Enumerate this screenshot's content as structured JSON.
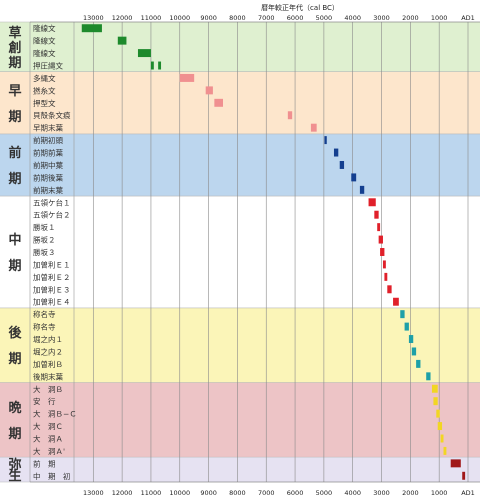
{
  "chart_data": {
    "type": "bar",
    "title": "暦年較正年代（cal BC）",
    "x_axis_ticks": [
      "13000",
      "12000",
      "11000",
      "10000",
      "9000",
      "8000",
      "7000",
      "6000",
      "5000",
      "4000",
      "3000",
      "2000",
      "1000",
      "AD1"
    ],
    "x_axis_values": [
      13000,
      12000,
      11000,
      10000,
      9000,
      8000,
      7000,
      6000,
      5000,
      4000,
      3000,
      2000,
      1000,
      0
    ],
    "xlim": [
      13600,
      0
    ],
    "grid": true,
    "periods": [
      {
        "label": "草創期",
        "color": "#dff0d0",
        "bar_color": "#1e8a2c",
        "phases": [
          {
            "name": "隆線文",
            "ranges": [
              [
                13400,
                12700
              ]
            ]
          },
          {
            "name": "隆線文",
            "ranges": [
              [
                12150,
                11850
              ]
            ]
          },
          {
            "name": "隆線文",
            "ranges": [
              [
                11450,
                11000
              ]
            ]
          },
          {
            "name": "押圧縄文",
            "ranges": [
              [
                11000,
                10900
              ],
              [
                10750,
                10650
              ]
            ]
          }
        ]
      },
      {
        "label": "早期",
        "color": "#fde6cc",
        "bar_color": "#f09090",
        "phases": [
          {
            "name": "多縄文",
            "ranges": [
              [
                10000,
                9500
              ]
            ]
          },
          {
            "name": "撚糸文",
            "ranges": [
              [
                9100,
                8850
              ]
            ]
          },
          {
            "name": "押型文",
            "ranges": [
              [
                8800,
                8500
              ]
            ]
          },
          {
            "name": "貝殻条文痕",
            "ranges": [
              [
                6250,
                6100
              ]
            ]
          },
          {
            "name": "早期末葉",
            "ranges": [
              [
                5450,
                5250
              ]
            ]
          }
        ]
      },
      {
        "label": "前期",
        "color": "#bcd6ee",
        "bar_color": "#143f8f",
        "phases": [
          {
            "name": "前期初頭",
            "ranges": [
              [
                4980,
                4900
              ]
            ]
          },
          {
            "name": "前期前葉",
            "ranges": [
              [
                4650,
                4500
              ]
            ]
          },
          {
            "name": "前期中葉",
            "ranges": [
              [
                4450,
                4300
              ]
            ]
          },
          {
            "name": "前期後葉",
            "ranges": [
              [
                4050,
                3880
              ]
            ]
          },
          {
            "name": "前期末葉",
            "ranges": [
              [
                3750,
                3600
              ]
            ]
          }
        ]
      },
      {
        "label": "中期",
        "color": "#ffffff",
        "bar_color": "#e0202a",
        "phases": [
          {
            "name": "五領ケ台１",
            "ranges": [
              [
                3450,
                3200
              ]
            ]
          },
          {
            "name": "五領ケ台２",
            "ranges": [
              [
                3250,
                3100
              ]
            ]
          },
          {
            "name": "勝坂１",
            "ranges": [
              [
                3150,
                3050
              ]
            ]
          },
          {
            "name": "勝坂２",
            "ranges": [
              [
                3100,
                2950
              ]
            ]
          },
          {
            "name": "勝坂３",
            "ranges": [
              [
                3050,
                2900
              ]
            ]
          },
          {
            "name": "加曽利Ｅ１",
            "ranges": [
              [
                2950,
                2850
              ]
            ]
          },
          {
            "name": "加曽利Ｅ２",
            "ranges": [
              [
                2900,
                2800
              ]
            ]
          },
          {
            "name": "加曽利Ｅ３",
            "ranges": [
              [
                2800,
                2650
              ]
            ]
          },
          {
            "name": "加曽利Ｅ４",
            "ranges": [
              [
                2600,
                2400
              ]
            ]
          }
        ]
      },
      {
        "label": "後期",
        "color": "#fbf5b8",
        "bar_color": "#1ea0a8",
        "phases": [
          {
            "name": "称名寺",
            "ranges": [
              [
                2350,
                2200
              ]
            ]
          },
          {
            "name": "称名寺",
            "ranges": [
              [
                2200,
                2050
              ]
            ]
          },
          {
            "name": "堀之内１",
            "ranges": [
              [
                2050,
                1900
              ]
            ]
          },
          {
            "name": "堀之内２",
            "ranges": [
              [
                1950,
                1800
              ]
            ]
          },
          {
            "name": "加曽利Ｂ",
            "ranges": [
              [
                1800,
                1650
              ]
            ]
          },
          {
            "name": "後期末葉",
            "ranges": [
              [
                1450,
                1300
              ]
            ]
          }
        ]
      },
      {
        "label": "晩期",
        "color": "#edc4c6",
        "bar_color": "#f2d622",
        "phases": [
          {
            "name": "大　洞Ｂ",
            "ranges": [
              [
                1250,
                1050
              ]
            ]
          },
          {
            "name": "安　行",
            "ranges": [
              [
                1200,
                1050
              ]
            ]
          },
          {
            "name": "大　洞Ｂ−Ｃ",
            "ranges": [
              [
                1100,
                980
              ]
            ]
          },
          {
            "name": "大　洞Ｃ",
            "ranges": [
              [
                1050,
                900
              ]
            ]
          },
          {
            "name": "大　洞Ａ",
            "ranges": [
              [
                950,
                850
              ]
            ]
          },
          {
            "name": "大　洞Ａ'",
            "ranges": [
              [
                850,
                750
              ]
            ]
          }
        ]
      },
      {
        "label": "弥生",
        "color": "#e6e2f2",
        "bar_color": "#a01818",
        "phases": [
          {
            "name": "前　期",
            "ranges": [
              [
                600,
                250
              ]
            ]
          },
          {
            "name": "中　期　初",
            "ranges": [
              [
                200,
                100
              ]
            ]
          }
        ]
      }
    ]
  }
}
